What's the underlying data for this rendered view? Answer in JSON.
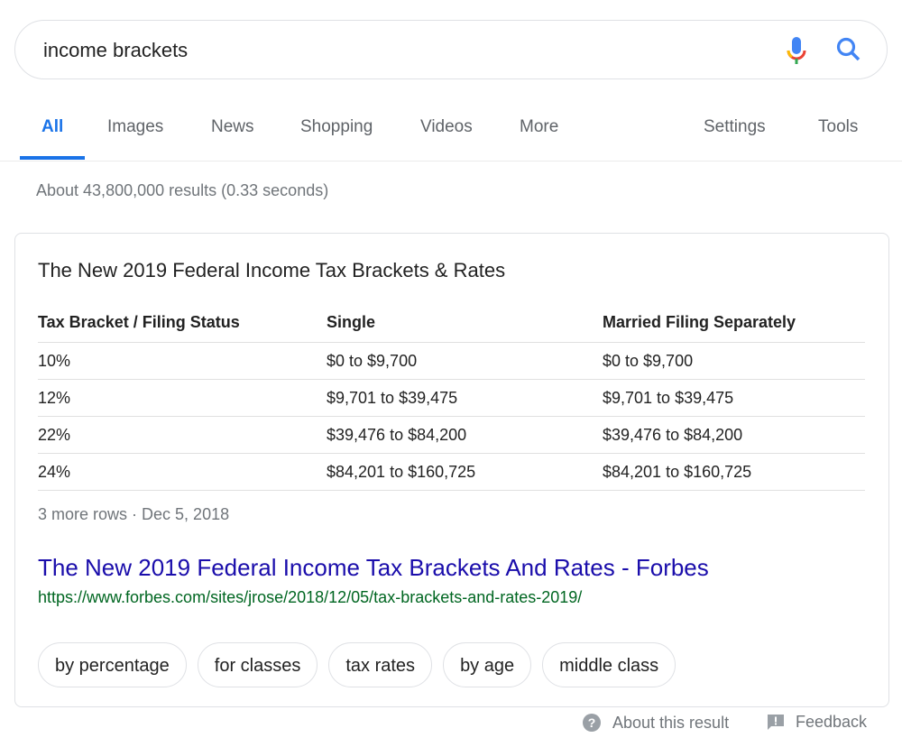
{
  "search": {
    "query": "income brackets"
  },
  "tabs": [
    {
      "label": "All"
    },
    {
      "label": "Images"
    },
    {
      "label": "News"
    },
    {
      "label": "Shopping"
    },
    {
      "label": "Videos"
    },
    {
      "label": "More"
    },
    {
      "label": "Settings"
    },
    {
      "label": "Tools"
    }
  ],
  "stats": "About 43,800,000 results (0.33 seconds)",
  "snippet": {
    "title": "The New 2019 Federal Income Tax Brackets & Rates",
    "headers": [
      "Tax Bracket / Filing Status",
      "Single",
      "Married Filing Separately"
    ],
    "rows": [
      [
        "10%",
        "$0 to $9,700",
        "$0 to $9,700"
      ],
      [
        "12%",
        "$9,701 to $39,475",
        "$9,701 to $39,475"
      ],
      [
        "22%",
        "$39,476 to $84,200",
        "$39,476 to $84,200"
      ],
      [
        "24%",
        "$84,201 to $160,725",
        "$84,201 to $160,725"
      ]
    ],
    "more_rows": "3 more rows",
    "date": "Dec 5, 2018",
    "link_title": "The New 2019 Federal Income Tax Brackets And Rates - Forbes",
    "url": "https://www.forbes.com/sites/jrose/2018/12/05/tax-brackets-and-rates-2019/",
    "chips": [
      "by percentage",
      "for classes",
      "tax rates",
      "by age",
      "middle class"
    ]
  },
  "footer": {
    "about": "About this result",
    "feedback": "Feedback"
  }
}
